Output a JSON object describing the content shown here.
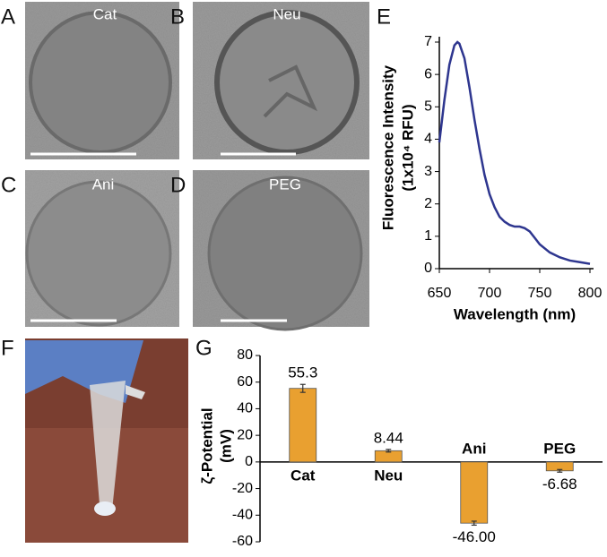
{
  "panels": {
    "letters": [
      "A",
      "B",
      "C",
      "D",
      "E",
      "F",
      "G"
    ],
    "image_labels": [
      "Cat",
      "Neu",
      "Ani",
      "PEG"
    ]
  },
  "chart_data": [
    {
      "type": "line",
      "xlabel": "Wavelength (nm)",
      "ylabel": "Fluorescence Intensity",
      "ylabel2": "(1x10⁴ RFU)",
      "x": [
        650,
        655,
        660,
        665,
        668,
        670,
        675,
        680,
        685,
        690,
        695,
        700,
        705,
        710,
        715,
        720,
        725,
        730,
        735,
        740,
        745,
        750,
        760,
        770,
        780,
        790,
        800
      ],
      "values": [
        3.9,
        5.2,
        6.3,
        6.9,
        7.0,
        6.95,
        6.5,
        5.6,
        4.6,
        3.7,
        2.9,
        2.3,
        1.9,
        1.6,
        1.45,
        1.35,
        1.3,
        1.3,
        1.25,
        1.15,
        0.95,
        0.75,
        0.5,
        0.35,
        0.25,
        0.2,
        0.15
      ],
      "color": "#2e368f",
      "xlim": [
        650,
        800
      ],
      "xticks": [
        650,
        700,
        750,
        800
      ],
      "ylim": [
        0,
        7
      ],
      "yticks": [
        0,
        1,
        2,
        3,
        4,
        5,
        6,
        7
      ]
    },
    {
      "type": "bar",
      "ylabel": "ζ-Potential",
      "ylabel2": "(mV)",
      "categories": [
        "Cat",
        "Neu",
        "Ani",
        "PEG"
      ],
      "values": [
        55.3,
        8.44,
        -46.0,
        -6.68
      ],
      "value_labels": [
        "55.3",
        "8.44",
        "-46.00",
        "-6.68"
      ],
      "errors": [
        3,
        1,
        1.5,
        1
      ],
      "color": "#e9a030",
      "ylim": [
        -60,
        80
      ],
      "yticks": [
        -60,
        -40,
        -20,
        0,
        20,
        40,
        60,
        80
      ]
    }
  ]
}
